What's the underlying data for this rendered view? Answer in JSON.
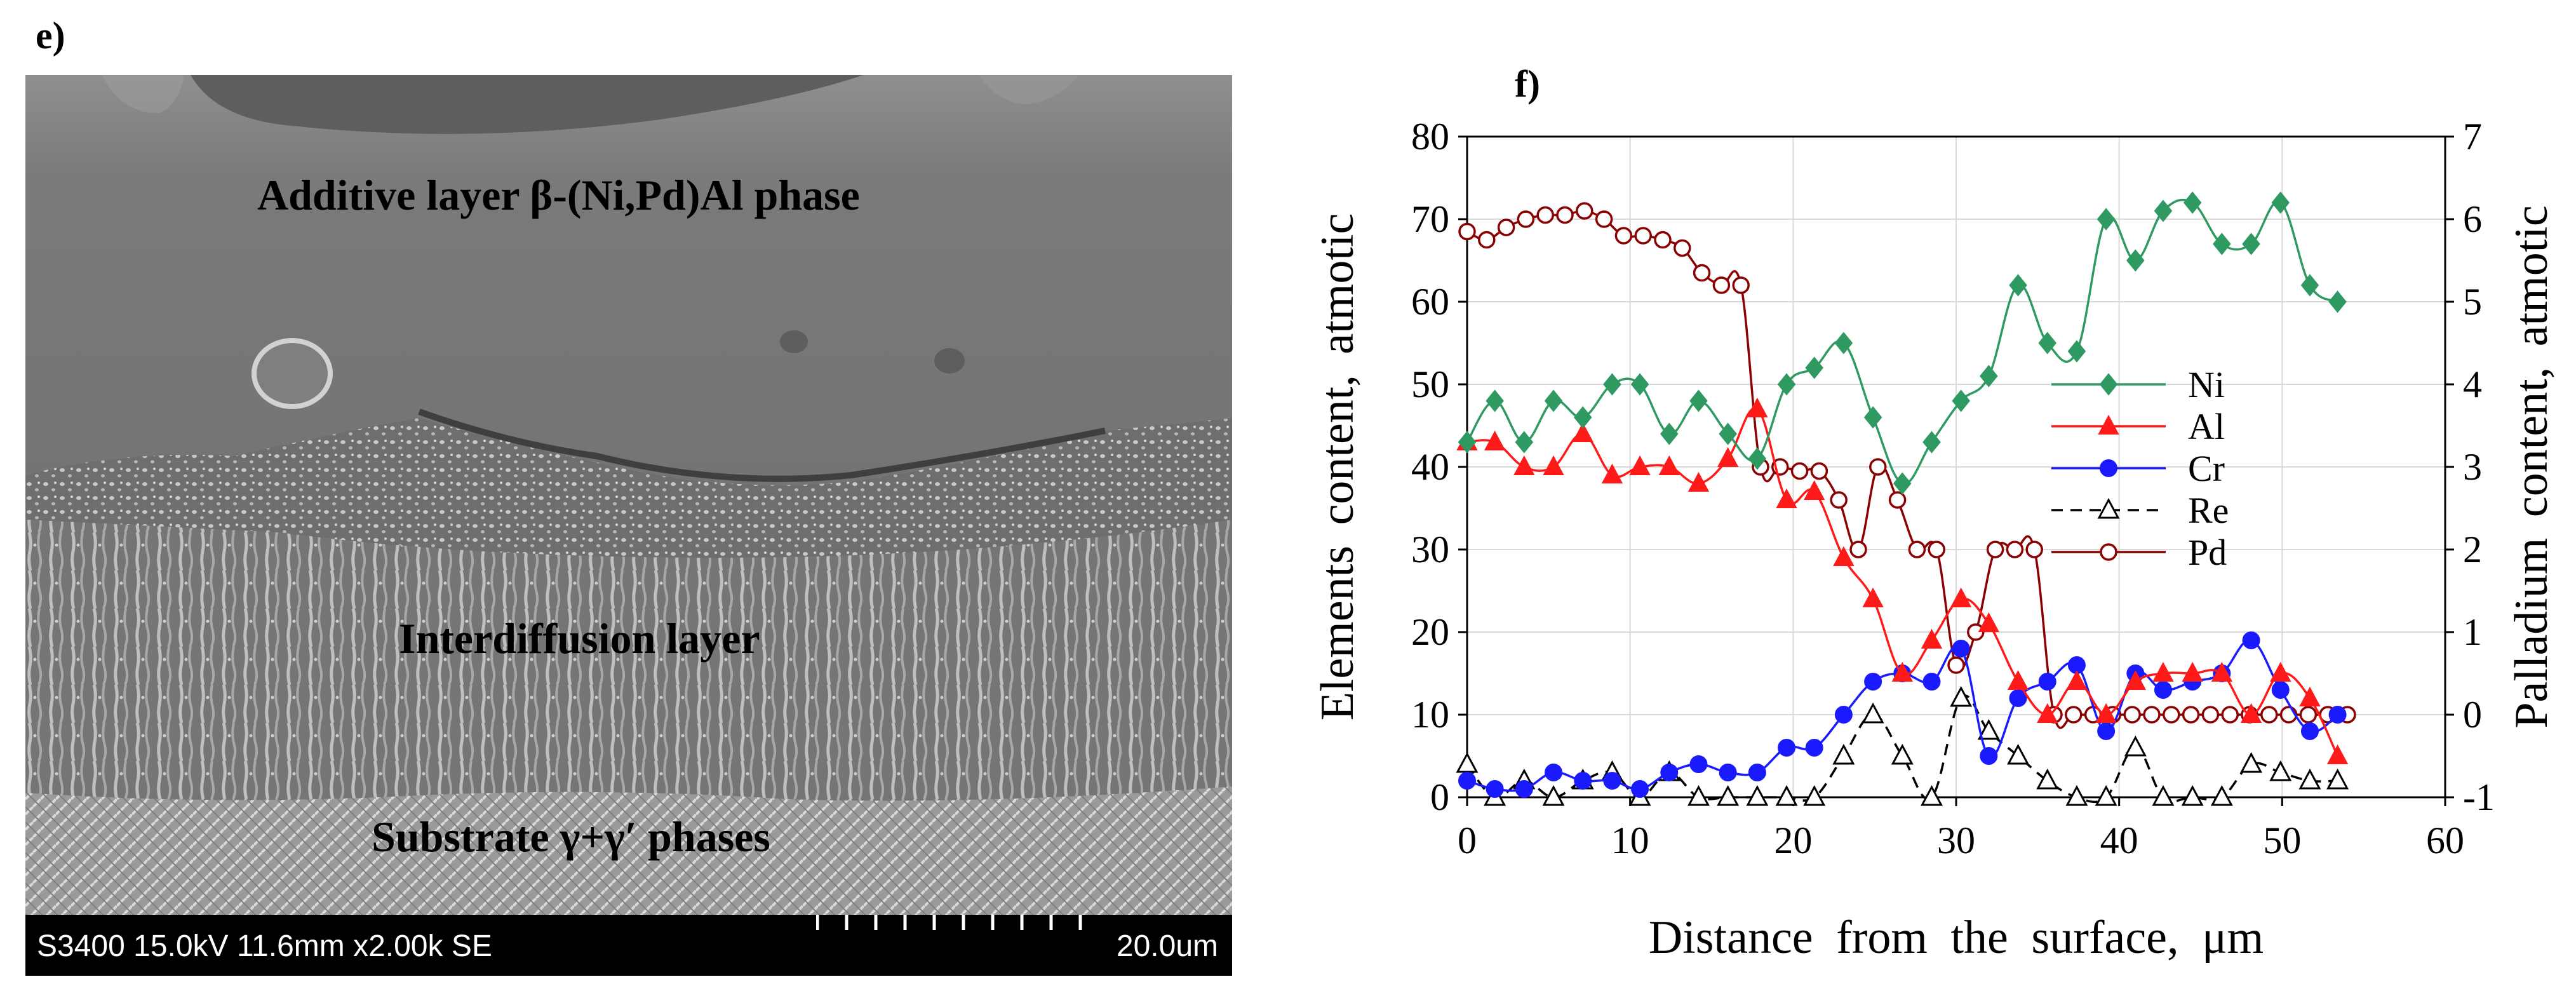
{
  "panels": {
    "e_label": "e)",
    "f_label": "f)"
  },
  "sem": {
    "layer_top": "Additive layer β-(Ni,Pd)Al phase",
    "layer_middle": "Interdiffusion layer",
    "layer_bottom": "Substrate γ+γ′ phases",
    "info_bar": "S3400 15.0kV 11.6mm x2.00k SE",
    "scale_label": "20.0um"
  },
  "chart_data": {
    "type": "line",
    "title": "f)",
    "xlabel": "Distance from the surface, μm",
    "ylabel": "Elements content, atmotic",
    "y2label": "Palladium content, atmotic",
    "xlim": [
      0,
      60
    ],
    "ylim": [
      0,
      80
    ],
    "y2lim": [
      -1,
      7
    ],
    "xticks": [
      0,
      10,
      20,
      30,
      40,
      50,
      60
    ],
    "yticks": [
      0,
      10,
      20,
      30,
      40,
      50,
      60,
      70,
      80
    ],
    "y2ticks": [
      -1,
      0,
      1,
      2,
      3,
      4,
      5,
      6,
      7
    ],
    "grid": true,
    "legend_position": "right-middle",
    "series": [
      {
        "name": "Ni",
        "axis": "left",
        "color": "#2e9a62",
        "marker": "diamond-filled",
        "dash": "solid",
        "x": [
          0,
          1.7,
          3.5,
          5.3,
          7.1,
          8.9,
          10.6,
          12.4,
          14.2,
          16.0,
          17.8,
          19.6,
          21.3,
          23.1,
          24.9,
          26.7,
          28.5,
          30.3,
          32.0,
          33.8,
          35.6,
          37.4,
          39.2,
          41.0,
          42.7,
          44.5,
          46.3,
          48.1,
          49.9,
          51.7,
          53.4
        ],
        "values": [
          43,
          48,
          43,
          48,
          46,
          50,
          50,
          44,
          48,
          44,
          41,
          50,
          52,
          55,
          46,
          38,
          43,
          48,
          51,
          62,
          55,
          54,
          70,
          65,
          71,
          72,
          67,
          67,
          72,
          62,
          60
        ]
      },
      {
        "name": "Al",
        "axis": "left",
        "color": "#ff1a1a",
        "marker": "triangle-filled",
        "dash": "solid",
        "x": [
          0,
          1.7,
          3.5,
          5.3,
          7.1,
          8.9,
          10.6,
          12.4,
          14.2,
          16.0,
          17.8,
          19.6,
          21.3,
          23.1,
          24.9,
          26.7,
          28.5,
          30.3,
          32.0,
          33.8,
          35.6,
          37.4,
          39.2,
          41.0,
          42.7,
          44.5,
          46.3,
          48.1,
          49.9,
          51.7,
          53.4
        ],
        "values": [
          43,
          43,
          40,
          40,
          44,
          39,
          40,
          40,
          38,
          41,
          47,
          36,
          37,
          29,
          24,
          15,
          19,
          24,
          21,
          14,
          10,
          14,
          10,
          14,
          15,
          15,
          15,
          10,
          15,
          12,
          5
        ]
      },
      {
        "name": "Cr",
        "axis": "left",
        "color": "#1a1aff",
        "marker": "circle-filled",
        "dash": "solid",
        "x": [
          0,
          1.7,
          3.5,
          5.3,
          7.1,
          8.9,
          10.6,
          12.4,
          14.2,
          16.0,
          17.8,
          19.6,
          21.3,
          23.1,
          24.9,
          26.7,
          28.5,
          30.3,
          32.0,
          33.8,
          35.6,
          37.4,
          39.2,
          41.0,
          42.7,
          44.5,
          46.3,
          48.1,
          49.9,
          51.7,
          53.4
        ],
        "values": [
          2,
          1,
          1,
          3,
          2,
          2,
          1,
          3,
          4,
          3,
          3,
          6,
          6,
          10,
          14,
          15,
          14,
          18,
          5,
          12,
          14,
          16,
          8,
          15,
          13,
          14,
          15,
          19,
          13,
          8,
          10
        ]
      },
      {
        "name": "Re",
        "axis": "left",
        "color": "#000000",
        "marker": "triangle-open",
        "dash": "dashed",
        "x": [
          0,
          1.7,
          3.5,
          5.3,
          7.1,
          8.9,
          10.6,
          12.4,
          14.2,
          16.0,
          17.8,
          19.6,
          21.3,
          23.1,
          24.9,
          26.7,
          28.5,
          30.3,
          32.0,
          33.8,
          35.6,
          37.4,
          39.2,
          41.0,
          42.7,
          44.5,
          46.3,
          48.1,
          49.9,
          51.7,
          53.4
        ],
        "values": [
          4,
          0,
          2,
          0,
          2,
          3,
          0,
          3,
          0,
          0,
          0,
          0,
          0,
          5,
          10,
          5,
          0,
          12,
          8,
          5,
          2,
          0,
          0,
          6,
          0,
          0,
          0,
          4,
          3,
          2,
          2
        ]
      },
      {
        "name": "Pd",
        "axis": "right",
        "color": "#8b0000",
        "marker": "circle-open",
        "dash": "solid",
        "x": [
          0,
          1.2,
          2.4,
          3.6,
          4.8,
          6.0,
          7.2,
          8.4,
          9.6,
          10.8,
          12.0,
          13.2,
          14.4,
          15.6,
          16.8,
          18.0,
          19.2,
          20.4,
          21.6,
          22.8,
          24.0,
          25.2,
          26.4,
          27.6,
          28.8,
          30.0,
          31.2,
          32.4,
          33.6,
          34.8,
          36.0,
          37.2,
          38.4,
          39.6,
          40.8,
          42.0,
          43.2,
          44.4,
          45.6,
          46.8,
          48.0,
          49.2,
          50.4,
          51.6,
          52.8,
          54.0
        ],
        "values": [
          5.85,
          5.75,
          5.9,
          6.0,
          6.05,
          6.05,
          6.1,
          6.0,
          5.8,
          5.8,
          5.75,
          5.65,
          5.35,
          5.2,
          5.2,
          3.0,
          3.0,
          2.95,
          2.95,
          2.6,
          2.0,
          3.0,
          2.6,
          2.0,
          2.0,
          0.6,
          1.0,
          2.0,
          2.0,
          2.0,
          0.0,
          0.0,
          0.0,
          0.0,
          0.0,
          0.0,
          0.0,
          0.0,
          0.0,
          0.0,
          0.0,
          0.0,
          0.0,
          0.0,
          0.0,
          0.0
        ]
      }
    ]
  }
}
